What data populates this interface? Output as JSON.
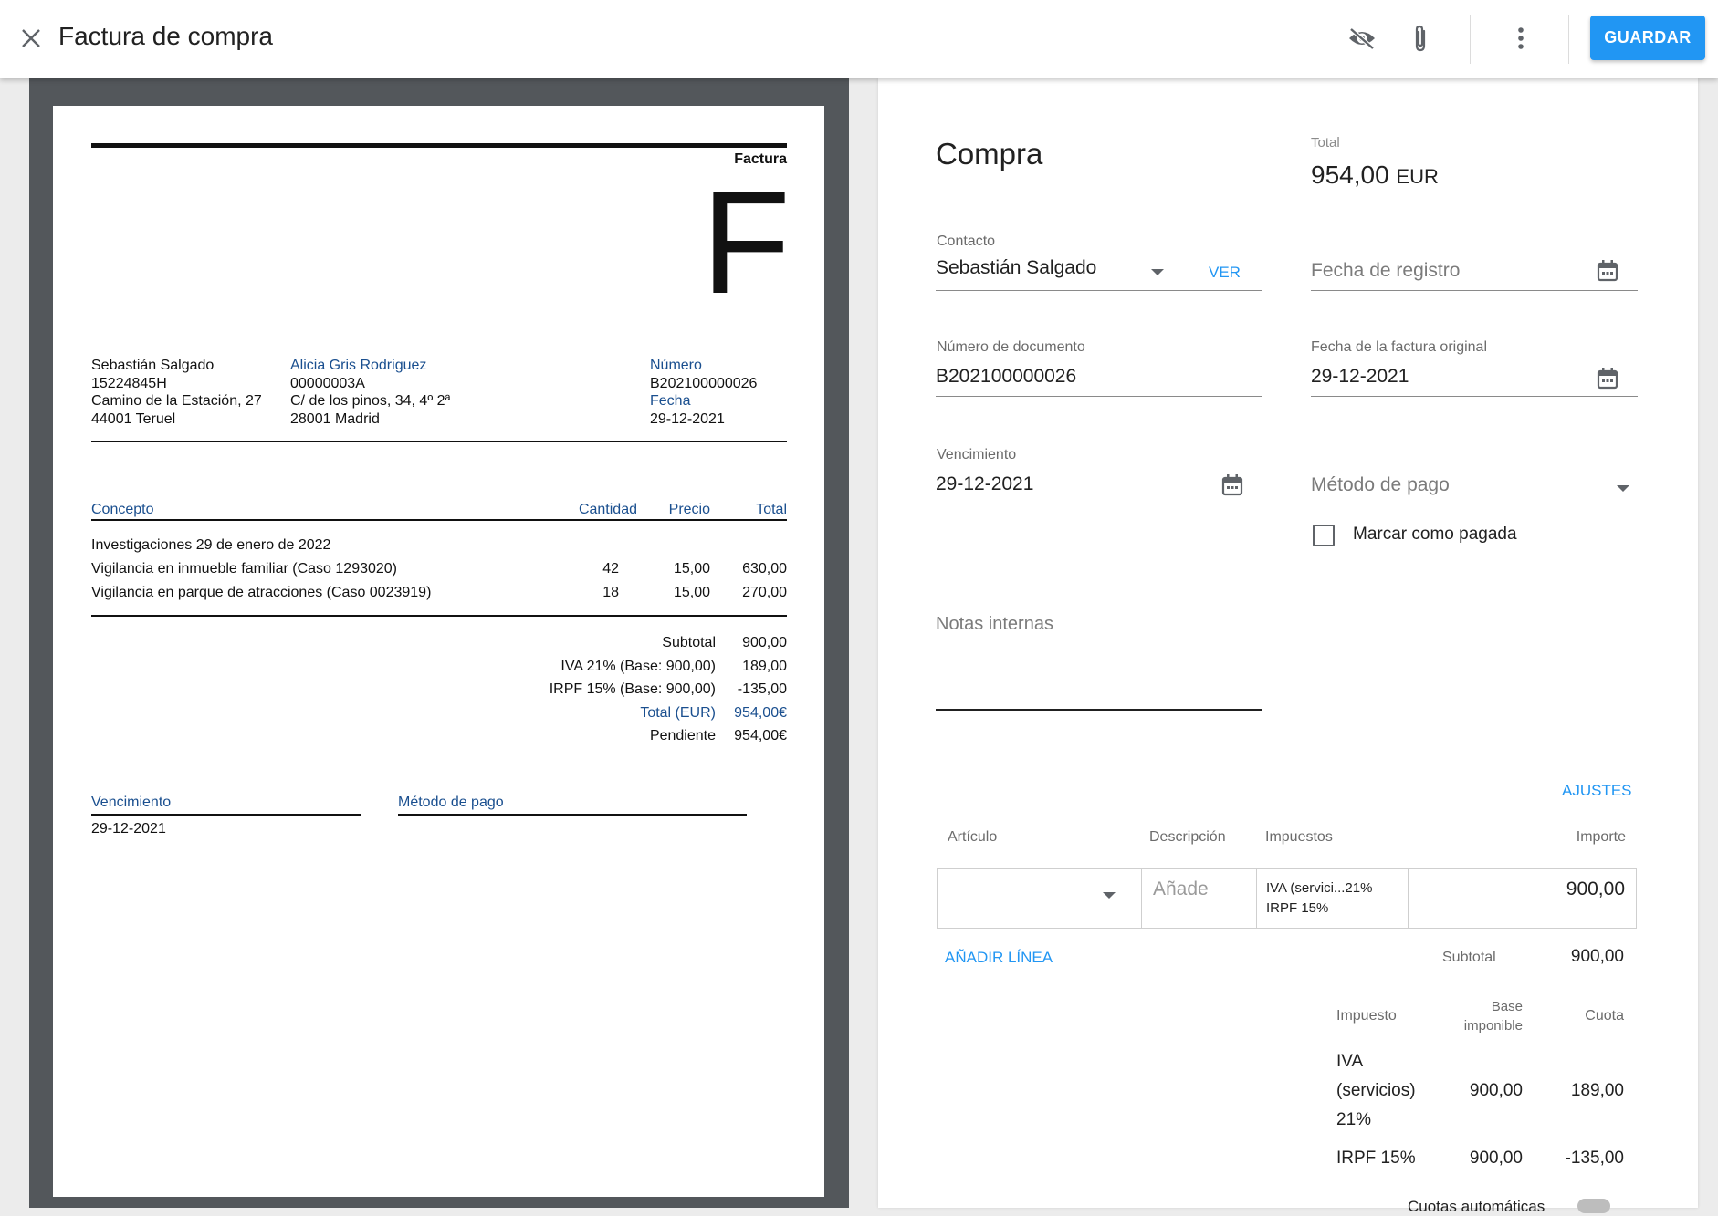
{
  "header": {
    "title": "Factura de compra",
    "save_label": "GUARDAR",
    "icons": [
      "close-icon",
      "visibility-off-icon",
      "paperclip-icon",
      "more-vert-icon"
    ]
  },
  "preview": {
    "doc_type": "Factura",
    "big_letter": "F",
    "issuer": {
      "name": "Sebastián Salgado",
      "tax_id": "15224845H",
      "address": "Camino de la Estación, 27",
      "city": "44001 Teruel"
    },
    "client": {
      "name": "Alicia Gris Rodriguez",
      "tax_id": "00000003A",
      "address": "C/ de los pinos, 34, 4º 2ª",
      "city": "28001 Madrid"
    },
    "number_label": "Número",
    "number": "B202100000026",
    "date_label": "Fecha",
    "date": "29-12-2021",
    "columns": {
      "concept": "Concepto",
      "quantity": "Cantidad",
      "price": "Precio",
      "total": "Total"
    },
    "section_title": "Investigaciones  29 de enero de 2022",
    "lines": [
      {
        "concept": "Vigilancia en inmueble familiar (Caso 1293020)",
        "quantity": "42",
        "price": "15,00",
        "total": "630,00"
      },
      {
        "concept": "Vigilancia en parque de atracciones (Caso 0023919)",
        "quantity": "18",
        "price": "15,00",
        "total": "270,00"
      }
    ],
    "totals": [
      {
        "label": "Subtotal",
        "value": "900,00"
      },
      {
        "label": "IVA 21% (Base: 900,00)",
        "value": "189,00"
      },
      {
        "label": "IRPF 15% (Base: 900,00)",
        "value": "-135,00"
      },
      {
        "label": "Total (EUR)",
        "value": "954,00€"
      },
      {
        "label": "Pendiente",
        "value": "954,00€"
      }
    ],
    "due_label": "Vencimiento",
    "due_date": "29-12-2021",
    "payment_label": "Método de pago"
  },
  "form": {
    "heading": "Compra",
    "total_label": "Total",
    "total_value": "954,00",
    "total_currency": "EUR",
    "contact_label": "Contacto",
    "contact_value": "Sebastián Salgado",
    "view_link": "VER",
    "registration_date_placeholder": "Fecha de registro",
    "doc_number_label": "Número de documento",
    "doc_number_value": "B202100000026",
    "original_date_label": "Fecha de la factura original",
    "original_date_value": "29-12-2021",
    "due_label": "Vencimiento",
    "due_value": "29-12-2021",
    "payment_method_placeholder": "Método de pago",
    "mark_paid_label": "Marcar como pagada",
    "mark_paid_checked": false,
    "notes_placeholder": "Notas internas",
    "settings_link": "AJUSTES",
    "line_columns": {
      "article": "Artículo",
      "description": "Descripción",
      "taxes": "Impuestos",
      "amount": "Importe"
    },
    "line": {
      "description_placeholder": "Añade",
      "tax1": "IVA (servici...21%",
      "tax2": "IRPF 15%",
      "amount": "900,00"
    },
    "add_line": "AÑADIR LÍNEA",
    "subtotal_label": "Subtotal",
    "subtotal_value": "900,00",
    "tax_columns": {
      "tax": "Impuesto",
      "base1": "Base",
      "base2": "imponible",
      "quota": "Cuota"
    },
    "tax_rows": [
      {
        "name_lines": [
          "IVA",
          "(servicios)",
          "21%"
        ],
        "base": "900,00",
        "quota": "189,00"
      },
      {
        "name_lines": [
          "IRPF 15%"
        ],
        "base": "900,00",
        "quota": "-135,00"
      }
    ],
    "auto_quotas_label": "Cuotas automáticas"
  },
  "colors": {
    "accent": "#2196f3",
    "link_blue": "#1a4f8f",
    "preview_bg": "#53575b"
  }
}
